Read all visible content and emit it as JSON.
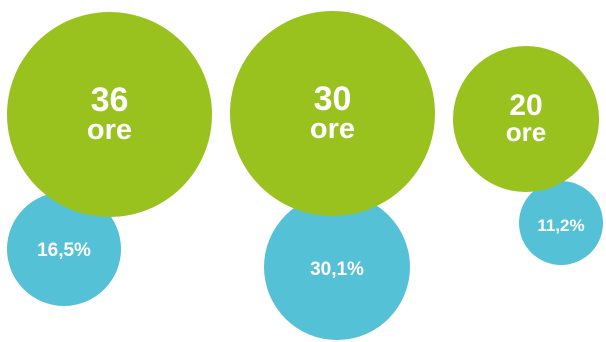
{
  "chart_data": {
    "type": "bubble",
    "title": "",
    "colors": {
      "hours_bubble": "#99c21e",
      "percent_bubble": "#55c1d6"
    },
    "series": [
      {
        "hours": 36,
        "hours_label": "36",
        "unit_label": "ore",
        "percent": 16.5,
        "percent_label": "16,5%"
      },
      {
        "hours": 30,
        "hours_label": "30",
        "unit_label": "ore",
        "percent": 30.1,
        "percent_label": "30,1%"
      },
      {
        "hours": 20,
        "hours_label": "20",
        "unit_label": "ore",
        "percent": 11.2,
        "percent_label": "11,2%"
      }
    ]
  }
}
